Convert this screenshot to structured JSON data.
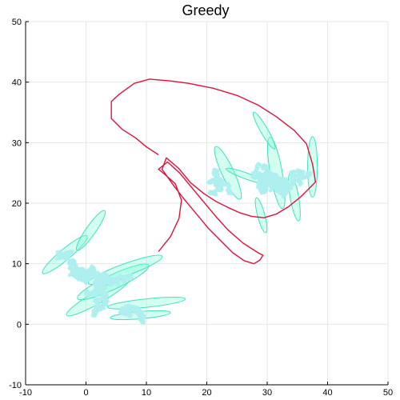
{
  "chart_data": {
    "type": "scatter",
    "title": "Greedy",
    "xlabel": "",
    "ylabel": "",
    "xlim": [
      -10,
      50
    ],
    "ylim": [
      -10,
      50
    ],
    "xticks": [
      -10,
      0,
      10,
      20,
      30,
      40,
      50
    ],
    "yticks": [
      -10,
      0,
      10,
      20,
      30,
      40,
      50
    ],
    "grid": true,
    "legend": "none",
    "colors": {
      "points": "#aeeeee",
      "ellipse_fill": "#7fffd4",
      "ellipse_stroke": "#40e0c0",
      "path": "#dc143c"
    },
    "series": [
      {
        "kind": "ellipses",
        "items": [
          {
            "cx": -3.5,
            "cy": 11.5,
            "rx": 4.8,
            "ry": 0.9,
            "angle": -40
          },
          {
            "cx": 0.8,
            "cy": 15.5,
            "rx": 4.0,
            "ry": 0.8,
            "angle": -55
          },
          {
            "cx": 2.0,
            "cy": 4.5,
            "rx": 6.0,
            "ry": 1.0,
            "angle": -30
          },
          {
            "cx": 4.5,
            "cy": 7.0,
            "rx": 6.5,
            "ry": 1.2,
            "angle": -25
          },
          {
            "cx": 6.5,
            "cy": 9.0,
            "rx": 6.5,
            "ry": 1.0,
            "angle": -20
          },
          {
            "cx": 10.0,
            "cy": 3.5,
            "rx": 6.5,
            "ry": 0.7,
            "angle": -6
          },
          {
            "cx": 9.0,
            "cy": 1.5,
            "rx": 5.0,
            "ry": 0.6,
            "angle": -5
          },
          {
            "cx": 23.5,
            "cy": 25.0,
            "rx": 4.8,
            "ry": 1.0,
            "angle": 65
          },
          {
            "cx": 31.5,
            "cy": 25.0,
            "rx": 6.0,
            "ry": 1.0,
            "angle": 80
          },
          {
            "cx": 29.5,
            "cy": 32.0,
            "rx": 3.5,
            "ry": 0.6,
            "angle": 60
          },
          {
            "cx": 37.5,
            "cy": 26.0,
            "rx": 5.0,
            "ry": 0.8,
            "angle": 90
          },
          {
            "cx": 34.5,
            "cy": 21.0,
            "rx": 4.0,
            "ry": 0.7,
            "angle": 80
          },
          {
            "cx": 29.0,
            "cy": 18.0,
            "rx": 3.0,
            "ry": 0.6,
            "angle": 75
          },
          {
            "cx": 26.5,
            "cy": 24.5,
            "rx": 3.5,
            "ry": 0.5,
            "angle": 20
          }
        ]
      },
      {
        "kind": "point-clusters",
        "items": [
          {
            "cx": 3.0,
            "cy": 6.5,
            "sx": 4.2,
            "sy": 3.8,
            "n": 900,
            "seed": 7
          },
          {
            "cx": 9.0,
            "cy": 1.0,
            "sx": 2.5,
            "sy": 1.6,
            "n": 250,
            "seed": 11
          },
          {
            "cx": -3.0,
            "cy": 11.0,
            "sx": 1.4,
            "sy": 0.8,
            "n": 80,
            "seed": 21
          },
          {
            "cx": 28.0,
            "cy": 24.5,
            "sx": 4.5,
            "sy": 2.6,
            "n": 900,
            "seed": 31
          },
          {
            "cx": 35.0,
            "cy": 24.0,
            "sx": 1.6,
            "sy": 2.5,
            "n": 180,
            "seed": 41
          },
          {
            "cx": 21.5,
            "cy": 23.5,
            "sx": 2.0,
            "sy": 1.5,
            "n": 200,
            "seed": 51
          }
        ]
      },
      {
        "kind": "path",
        "points": [
          [
            12.0,
            12.0
          ],
          [
            14.0,
            14.5
          ],
          [
            15.4,
            17.5
          ],
          [
            15.8,
            20.5
          ],
          [
            14.8,
            23.2
          ],
          [
            13.0,
            24.8
          ],
          [
            12.0,
            25.6
          ],
          [
            13.5,
            26.8
          ],
          [
            15.5,
            25.0
          ],
          [
            17.5,
            22.6
          ],
          [
            19.5,
            20.2
          ],
          [
            21.5,
            17.8
          ],
          [
            23.5,
            15.6
          ],
          [
            26.0,
            13.4
          ],
          [
            28.5,
            11.8
          ],
          [
            29.3,
            11.4
          ],
          [
            28.8,
            10.6
          ],
          [
            27.8,
            10.0
          ],
          [
            26.2,
            10.5
          ],
          [
            24.3,
            11.8
          ],
          [
            22.3,
            13.8
          ],
          [
            20.3,
            15.8
          ],
          [
            18.3,
            18.2
          ],
          [
            16.3,
            20.6
          ],
          [
            14.6,
            22.8
          ],
          [
            12.6,
            25.6
          ],
          [
            13.3,
            27.5
          ],
          [
            15.3,
            25.8
          ],
          [
            17.3,
            23.4
          ],
          [
            19.5,
            21.6
          ],
          [
            21.5,
            20.3
          ],
          [
            23.5,
            19.3
          ],
          [
            25.5,
            18.4
          ],
          [
            27.5,
            17.8
          ],
          [
            29.5,
            17.6
          ],
          [
            31.5,
            18.2
          ],
          [
            33.5,
            19.4
          ],
          [
            35.5,
            21.0
          ],
          [
            37.0,
            22.5
          ],
          [
            38.0,
            23.5
          ],
          [
            37.5,
            26.5
          ],
          [
            36.5,
            29.8
          ],
          [
            34.5,
            32.0
          ],
          [
            31.5,
            34.3
          ],
          [
            28.5,
            36.2
          ],
          [
            25.0,
            37.8
          ],
          [
            21.0,
            39.0
          ],
          [
            17.0,
            39.8
          ],
          [
            14.0,
            40.2
          ],
          [
            10.5,
            40.5
          ],
          [
            8.0,
            39.8
          ],
          [
            5.5,
            38.0
          ],
          [
            4.2,
            36.8
          ],
          [
            4.2,
            34.0
          ],
          [
            6.0,
            32.2
          ],
          [
            8.2,
            30.8
          ],
          [
            10.0,
            29.3
          ],
          [
            12.0,
            28.0
          ]
        ]
      }
    ]
  }
}
